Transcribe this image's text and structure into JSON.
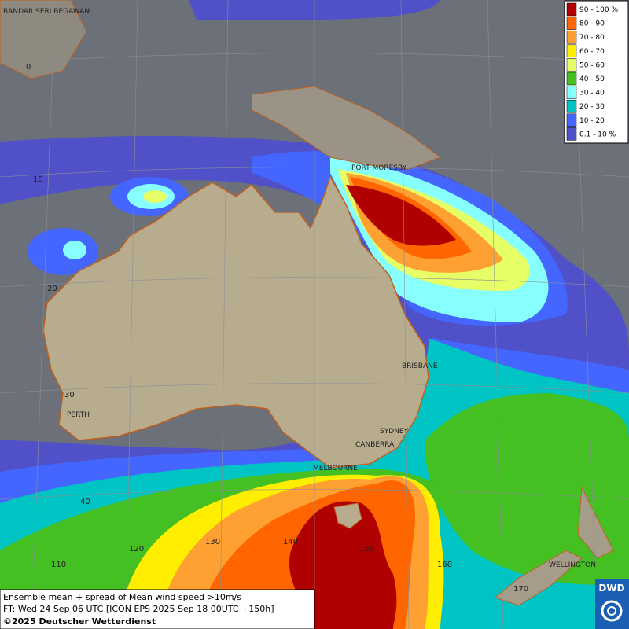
{
  "map": {
    "legend": [
      {
        "label": "90 - 100 %",
        "color": "#b00000"
      },
      {
        "label": "80 - 90",
        "color": "#ff6600"
      },
      {
        "label": "70 - 80",
        "color": "#ffa033"
      },
      {
        "label": "60 - 70",
        "color": "#ffee00"
      },
      {
        "label": "50 - 60",
        "color": "#e6ff66"
      },
      {
        "label": "40 - 50",
        "color": "#44c022"
      },
      {
        "label": "30 - 40",
        "color": "#88ffff"
      },
      {
        "label": "20 - 30",
        "color": "#00c4c4"
      },
      {
        "label": "10 - 20",
        "color": "#4466ff"
      },
      {
        "label": "0.1 - 10 %",
        "color": "#5050c8"
      }
    ],
    "places": [
      "BANDAR SERI BEGAWAN",
      "PORT MORESBY",
      "BRISBANE",
      "SYDNEY",
      "CANBERRA",
      "MELBOURNE",
      "PERTH",
      "WELLINGTON"
    ],
    "lat_labels": [
      "0",
      "10",
      "20",
      "30",
      "40"
    ],
    "lon_labels": [
      "110",
      "120",
      "130",
      "140",
      "150",
      "160",
      "170"
    ],
    "footer": {
      "line1": "Ensemble mean + spread of Mean wind speed >10m/s",
      "line2": "FT: Wed 24 Sep 06 UTC [ICON EPS 2025 Sep 18 00UTC +150h]",
      "line3": "©2025 Deutscher Wetterdienst"
    },
    "logo": "DWD"
  }
}
